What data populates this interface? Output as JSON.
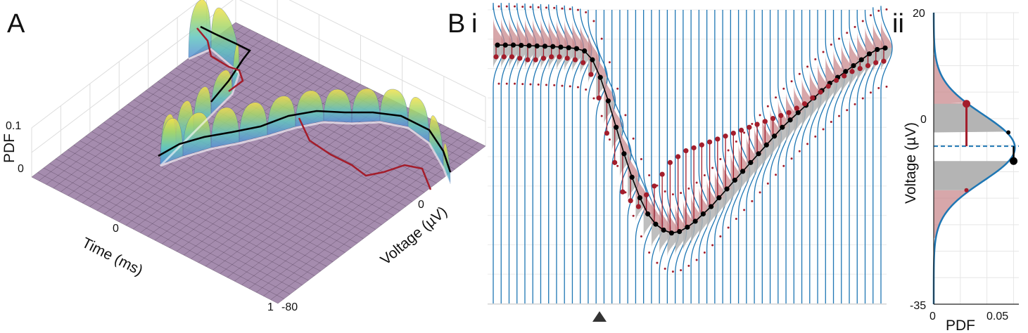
{
  "figure": {
    "panel_a": "A",
    "panel_b": "B",
    "panel_b_i": "i",
    "panel_b_ii": "ii",
    "marker": "triangle-up-icon"
  },
  "colors": {
    "surface_base": "#a58cae",
    "mesh": "#3b2a40",
    "curve_blue": "#1f77b4",
    "dark_red": "#a31d2b",
    "pink_fill": "#c98a8e",
    "gray_fill": "#b4b4b4",
    "black": "#000000",
    "grid": "#dddddd"
  },
  "chart_data": [
    {
      "panel": "A",
      "type": "surface3d",
      "title": "",
      "axes": {
        "z": {
          "label": "PDF",
          "ticks": [
            "0.1",
            "0"
          ]
        },
        "x": {
          "label": "Time (ms)",
          "ticks": [
            "0",
            "1"
          ]
        },
        "y": {
          "label": "Voltage (µV)",
          "ticks": [
            "0",
            "-80"
          ]
        }
      },
      "series": [
        {
          "name": "mode-trace",
          "color": "black"
        },
        {
          "name": "observed-trace",
          "color": "dark-red"
        }
      ]
    },
    {
      "panel": "B i",
      "type": "line",
      "title": "",
      "columns": 50,
      "ylim": [
        -80,
        20
      ],
      "series": [
        {
          "name": "median (black)",
          "values": [
            8.0,
            8.0,
            8.0,
            7.9,
            7.8,
            7.7,
            7.6,
            7.5,
            7.3,
            7.1,
            6.8,
            6.0,
            3.0,
            -3.0,
            -11.0,
            -20.0,
            -29.0,
            -37.0,
            -44.0,
            -49.5,
            -53.0,
            -55.0,
            -56.0,
            -55.5,
            -54.0,
            -52.0,
            -49.5,
            -47.0,
            -44.0,
            -41.0,
            -38.0,
            -35.0,
            -32.0,
            -29.0,
            -26.0,
            -23.0,
            -20.0,
            -17.5,
            -15.0,
            -12.5,
            -10.0,
            -7.5,
            -5.0,
            -3.0,
            -1.0,
            1.0,
            3.0,
            5.0,
            6.5,
            7.0
          ]
        },
        {
          "name": "observed (red)",
          "values": [
            4.0,
            4.0,
            4.0,
            3.5,
            3.0,
            3.0,
            3.5,
            4.0,
            4.0,
            3.5,
            3.0,
            2.0,
            -2.0,
            -10.0,
            -22.0,
            -32.0,
            -42.0,
            -45.0,
            -47.0,
            -43.0,
            -40.0,
            -36.0,
            -32.0,
            -30.0,
            -28.0,
            -27.0,
            -26.0,
            -25.0,
            -24.0,
            -23.0,
            -22.0,
            -21.0,
            -20.0,
            -19.0,
            -18.0,
            -17.0,
            -16.0,
            -15.0,
            -13.5,
            -12.0,
            -10.0,
            -8.0,
            -6.0,
            -4.0,
            -2.5,
            -1.0,
            0.0,
            1.0,
            2.0,
            2.5
          ]
        }
      ]
    },
    {
      "panel": "B ii",
      "type": "area",
      "title": "",
      "xlabel": "PDF",
      "ylabel": "Voltage (µV)",
      "xlim": [
        0,
        0.065
      ],
      "ylim": [
        -35,
        20
      ],
      "x_ticks": [
        "0",
        "0.05"
      ],
      "y_ticks": [
        "20",
        "0",
        "-35"
      ],
      "density": {
        "mean": -5.5,
        "sd": 6.3
      },
      "dashed_line_voltage": -5.2,
      "observed": {
        "voltage": 2.8,
        "pdf": 0.025
      },
      "median": {
        "voltage": -8.0,
        "pdf": 0.061
      },
      "small_markers": [
        {
          "voltage": -2.6,
          "pdf": 0.057,
          "color": "black"
        },
        {
          "voltage": -13.5,
          "pdf": 0.025,
          "color": "dark-red"
        }
      ]
    }
  ]
}
